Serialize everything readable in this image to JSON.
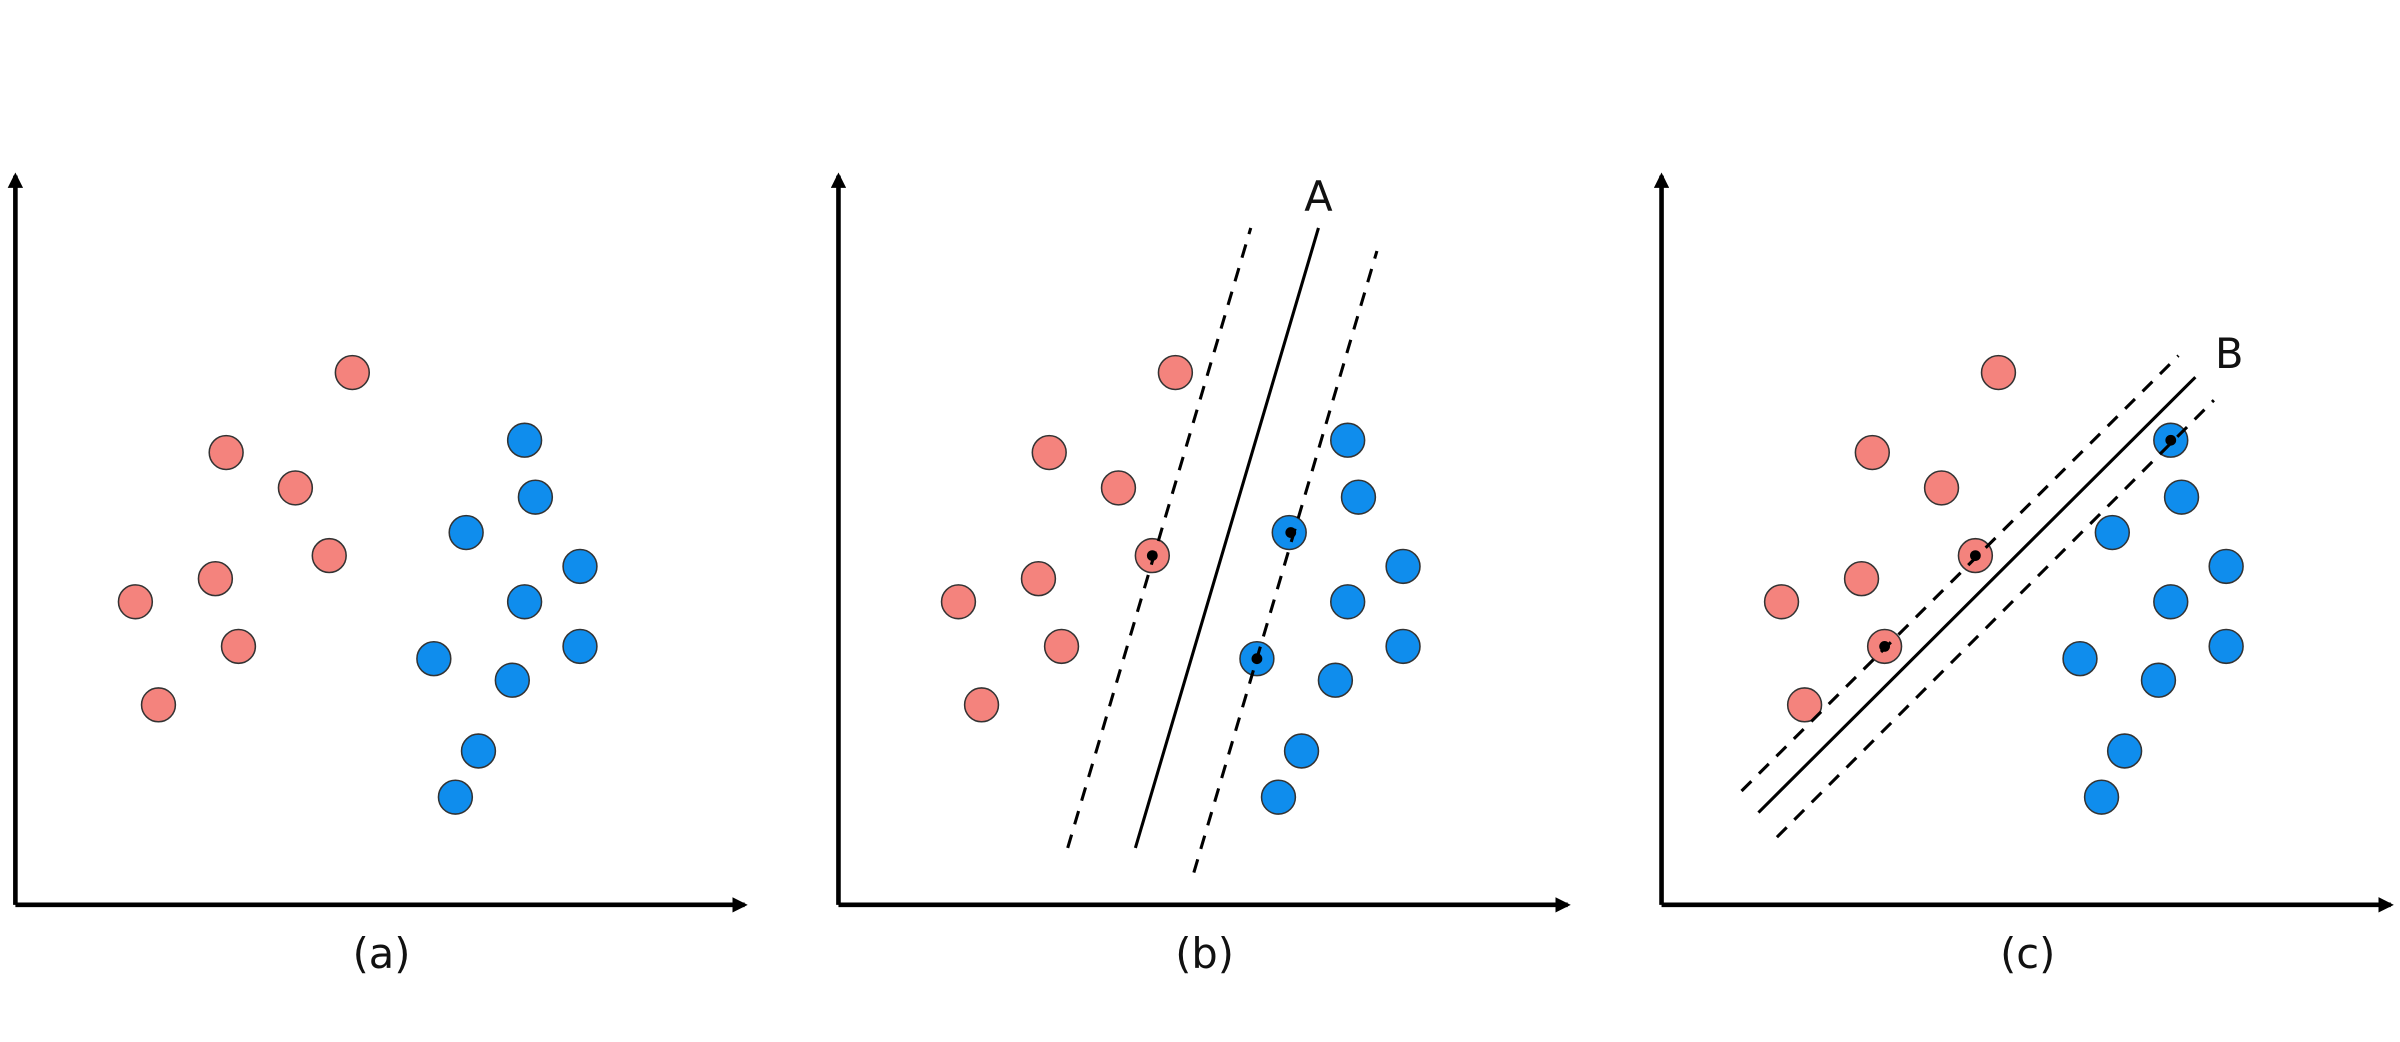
{
  "panels": [
    {
      "label": "(a)"
    },
    {
      "label": "(b)",
      "line_label": "A"
    },
    {
      "label": "(c)",
      "line_label": "B"
    }
  ]
}
